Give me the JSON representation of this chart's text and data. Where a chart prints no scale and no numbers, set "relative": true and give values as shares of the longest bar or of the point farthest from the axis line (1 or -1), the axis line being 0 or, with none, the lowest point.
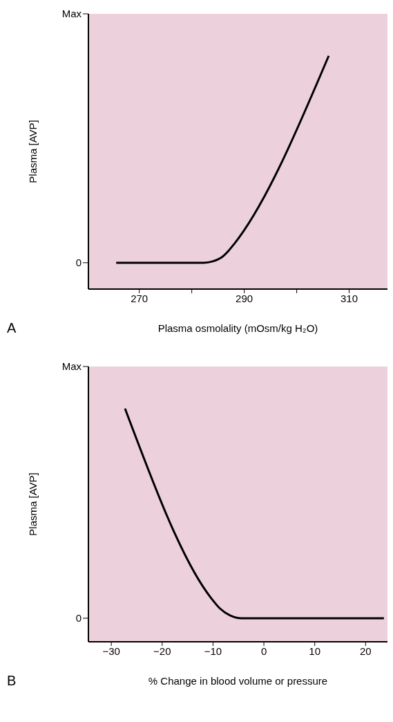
{
  "chart_data": [
    {
      "type": "line",
      "relative": true,
      "xlabel": "Plasma osmolality (mOsm/kg H₂O)",
      "ylabel": "Plasma [AVP]",
      "annotations": [
        "A",
        "0",
        "Max"
      ],
      "x": [
        265.6,
        282.3,
        284,
        285.8,
        287,
        288.1,
        306.1
      ],
      "series": [
        {
          "color": "#000000",
          "values": [
            0.113,
            0.113,
            0.119,
            0.138,
            0.164,
            0.194,
            1
          ]
        }
      ],
      "xlim": [
        260.3,
        317.3
      ],
      "xticks": [
        270,
        {
          "value": 280,
          "label": null
        },
        290,
        {
          "value": 300,
          "label": null
        },
        310
      ]
    },
    {
      "type": "line",
      "relative": true,
      "xlabel": "% Change in blood volume or pressure",
      "ylabel": "Plasma [AVP]",
      "annotations": [
        "B",
        "0",
        "Max"
      ],
      "x": [
        -27.3,
        -10.4,
        -8.65,
        -6.65,
        -4.4,
        23.6
      ],
      "series": [
        {
          "color": "#000000",
          "values": [
            1,
            0.188,
            0.143,
            0.113,
            0.101,
            0.101
          ]
        }
      ],
      "xlim": [
        -34.5,
        24.3
      ],
      "xticks": [
        -30,
        -20,
        -10,
        0,
        10,
        20
      ]
    }
  ]
}
